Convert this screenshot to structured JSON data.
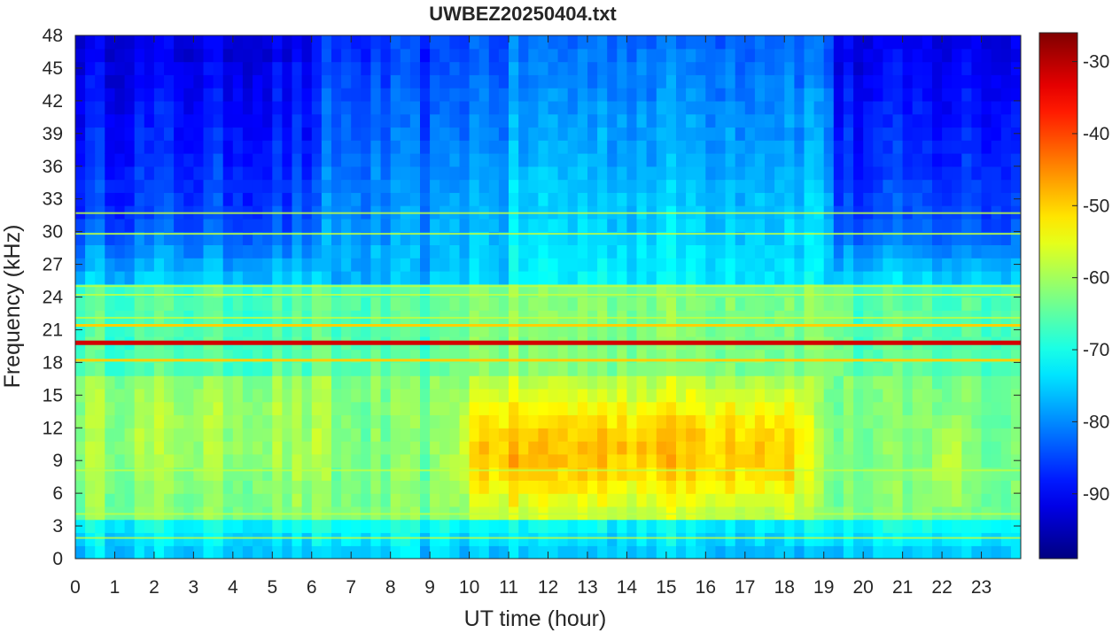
{
  "chart_data": {
    "type": "heatmap",
    "title": "UWBEZ20250404.txt",
    "xlabel": "UT time (hour)",
    "ylabel": "Frequency (kHz)",
    "xlim": [
      0,
      24
    ],
    "ylim": [
      0,
      48
    ],
    "x_ticks": [
      0,
      1,
      2,
      3,
      4,
      5,
      6,
      7,
      8,
      9,
      10,
      11,
      12,
      13,
      14,
      15,
      16,
      17,
      18,
      19,
      20,
      21,
      22,
      23
    ],
    "y_ticks": [
      0,
      3,
      6,
      9,
      12,
      15,
      18,
      21,
      24,
      27,
      30,
      33,
      36,
      39,
      42,
      45,
      48
    ],
    "colorbar": {
      "limits": [
        -99,
        -26
      ],
      "ticks": [
        -90,
        -80,
        -70,
        -60,
        -50,
        -40,
        -30
      ],
      "colormap": "jet"
    },
    "features": {
      "strong_lines_khz": [
        {
          "freq": 19.8,
          "level": -32
        },
        {
          "freq": 21.4,
          "level": -50
        },
        {
          "freq": 18.2,
          "level": -50
        }
      ],
      "weak_lines_khz": [
        25.0,
        24.2,
        22.1,
        4.1,
        8.1,
        31.7,
        29.8,
        1.9
      ],
      "daytime_enhancement": {
        "start_hour": 9.8,
        "end_hour": 19.0,
        "peak_level": -47,
        "band_khz": [
          4,
          17
        ]
      },
      "night_low_level_high_freq": -88
    }
  }
}
